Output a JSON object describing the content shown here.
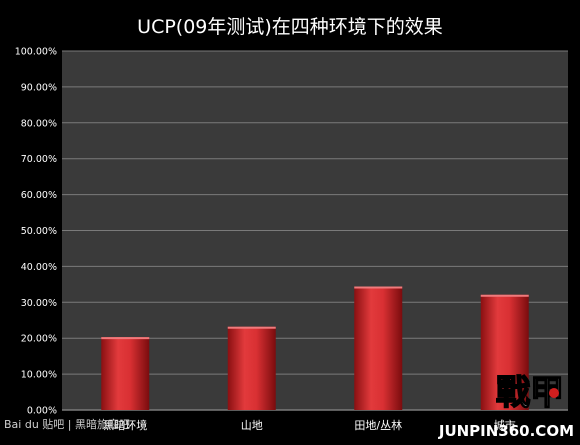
{
  "chart_data": {
    "type": "bar",
    "title": "UCP(09年测试)在四种环境下的效果",
    "categories": [
      "黑暗环境",
      "山地",
      "田地/丛林",
      "城市"
    ],
    "values": [
      0.203,
      0.232,
      0.344,
      0.321
    ],
    "ylim": [
      0,
      1
    ],
    "y_ticks": [
      "0.00%",
      "10.00%",
      "20.00%",
      "30.00%",
      "40.00%",
      "50.00%",
      "60.00%",
      "70.00%",
      "80.00%",
      "90.00%",
      "100.00%"
    ],
    "xlabel": "",
    "ylabel": "",
    "grid": true,
    "legend": "none",
    "colors": {
      "bar": "#d93033",
      "bar_dark": "#8a1012",
      "plot_bg": "#3a3a3a",
      "page_bg": "#000000",
      "grid": "#7a7a7a",
      "text": "#ffffff"
    }
  },
  "watermarks": {
    "baidu_label": "Bai du 贴吧 | 黑暗旅寇吧",
    "junpin_logo": "戰甲",
    "junpin_url": "JUNPIN360.COM"
  }
}
